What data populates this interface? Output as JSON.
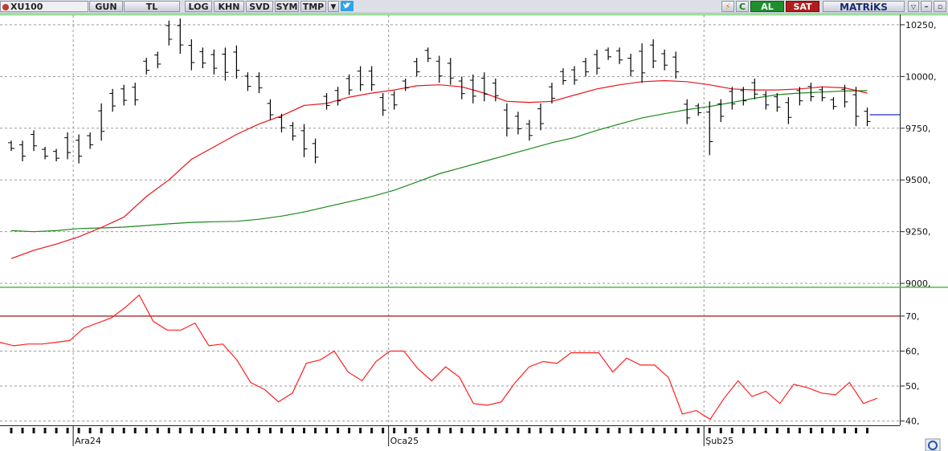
{
  "toolbar": {
    "symbol": "XU100",
    "buttons": [
      "GUN",
      "TL",
      "LOG",
      "KHN",
      "SVD",
      "SYM",
      "TMP"
    ],
    "lightning_icon": "lightning-icon",
    "refresh_label": "C",
    "buy_label": "AL",
    "sell_label": "SAT",
    "brand": "MATRiKS",
    "twitter_icon": "twitter-icon"
  },
  "colors": {
    "ma_short": "#e8141b",
    "ma_long": "#1a8a1a",
    "rsi_line": "#ff2020",
    "rsi_level_line": "#a01010",
    "current_price_marker": "#1c2ec8",
    "panel_separator": "#4cc04c"
  },
  "chart_data": [
    {
      "type": "ohlc",
      "y_tick_labels": [
        "10250,",
        "10000,",
        "9750,",
        "9500,",
        "9250,",
        "9000,"
      ],
      "y_ticks": [
        10250,
        10000,
        9750,
        9500,
        9250,
        9000
      ],
      "ylim": [
        8985,
        10300
      ],
      "grid": true,
      "bars": [
        [
          9690,
          9640
        ],
        [
          9690,
          9590
        ],
        [
          9740,
          9640
        ],
        [
          9660,
          9600
        ],
        [
          9650,
          9590
        ],
        [
          9730,
          9600
        ],
        [
          9720,
          9580
        ],
        [
          9730,
          9650
        ],
        [
          9870,
          9690
        ],
        [
          9940,
          9830
        ],
        [
          9960,
          9860
        ],
        [
          9970,
          9860
        ],
        [
          10090,
          10010
        ],
        [
          10120,
          10040
        ],
        [
          10270,
          10150
        ],
        [
          10280,
          10110
        ],
        [
          10180,
          10030
        ],
        [
          10140,
          10040
        ],
        [
          10130,
          10010
        ],
        [
          10140,
          9980
        ],
        [
          10150,
          9990
        ],
        [
          10020,
          9930
        ],
        [
          10020,
          9920
        ],
        [
          9890,
          9790
        ],
        [
          9820,
          9730
        ],
        [
          9780,
          9690
        ],
        [
          9770,
          9610
        ],
        [
          9700,
          9580
        ],
        [
          9920,
          9840
        ],
        [
          9950,
          9860
        ],
        [
          10010,
          9910
        ],
        [
          10050,
          9930
        ],
        [
          10050,
          9930
        ],
        [
          9920,
          9810
        ],
        [
          9930,
          9840
        ],
        [
          9990,
          9930
        ],
        [
          10090,
          10000
        ],
        [
          10140,
          10070
        ],
        [
          10100,
          9970
        ],
        [
          10090,
          9960
        ],
        [
          10000,
          9890
        ],
        [
          10010,
          9870
        ],
        [
          10020,
          9880
        ],
        [
          9990,
          9880
        ],
        [
          9870,
          9710
        ],
        [
          9830,
          9720
        ],
        [
          9790,
          9690
        ],
        [
          9870,
          9740
        ],
        [
          9970,
          9870
        ],
        [
          10040,
          9960
        ],
        [
          10050,
          9960
        ],
        [
          10090,
          10000
        ],
        [
          10130,
          10010
        ],
        [
          10140,
          10080
        ],
        [
          10140,
          10060
        ],
        [
          10110,
          10000
        ],
        [
          10160,
          9970
        ],
        [
          10180,
          10040
        ],
        [
          10130,
          10030
        ],
        [
          10120,
          9990
        ],
        [
          9890,
          9770
        ],
        [
          9870,
          9810
        ],
        [
          9880,
          9620
        ],
        [
          9890,
          9780
        ],
        [
          9950,
          9840
        ],
        [
          9950,
          9860
        ],
        [
          9990,
          9890
        ],
        [
          9930,
          9840
        ],
        [
          9920,
          9830
        ],
        [
          9900,
          9770
        ],
        [
          9950,
          9860
        ],
        [
          9970,
          9880
        ],
        [
          9950,
          9880
        ],
        [
          9900,
          9840
        ],
        [
          9960,
          9850
        ],
        [
          9950,
          9760
        ],
        [
          9850,
          9760
        ]
      ],
      "ma_short_values": [
        [
          0,
          9120
        ],
        [
          2,
          9160
        ],
        [
          4,
          9190
        ],
        [
          6,
          9225
        ],
        [
          8,
          9270
        ],
        [
          10,
          9320
        ],
        [
          12,
          9420
        ],
        [
          14,
          9500
        ],
        [
          16,
          9600
        ],
        [
          18,
          9660
        ],
        [
          20,
          9720
        ],
        [
          22,
          9770
        ],
        [
          24,
          9810
        ],
        [
          26,
          9860
        ],
        [
          28,
          9870
        ],
        [
          30,
          9900
        ],
        [
          32,
          9920
        ],
        [
          34,
          9935
        ],
        [
          36,
          9955
        ],
        [
          38,
          9960
        ],
        [
          40,
          9950
        ],
        [
          42,
          9920
        ],
        [
          44,
          9880
        ],
        [
          46,
          9875
        ],
        [
          48,
          9880
        ],
        [
          50,
          9910
        ],
        [
          52,
          9940
        ],
        [
          54,
          9960
        ],
        [
          56,
          9975
        ],
        [
          58,
          9980
        ],
        [
          60,
          9975
        ],
        [
          62,
          9960
        ],
        [
          64,
          9940
        ],
        [
          66,
          9935
        ],
        [
          68,
          9935
        ],
        [
          70,
          9940
        ],
        [
          72,
          9950
        ],
        [
          74,
          9945
        ],
        [
          76,
          9920
        ]
      ],
      "ma_long_values": [
        [
          0,
          9255
        ],
        [
          2,
          9250
        ],
        [
          4,
          9255
        ],
        [
          6,
          9265
        ],
        [
          8,
          9268
        ],
        [
          10,
          9272
        ],
        [
          12,
          9280
        ],
        [
          14,
          9288
        ],
        [
          16,
          9295
        ],
        [
          18,
          9298
        ],
        [
          20,
          9300
        ],
        [
          22,
          9310
        ],
        [
          24,
          9325
        ],
        [
          26,
          9345
        ],
        [
          28,
          9370
        ],
        [
          30,
          9395
        ],
        [
          32,
          9420
        ],
        [
          34,
          9450
        ],
        [
          36,
          9490
        ],
        [
          38,
          9530
        ],
        [
          40,
          9560
        ],
        [
          42,
          9590
        ],
        [
          44,
          9620
        ],
        [
          46,
          9650
        ],
        [
          48,
          9680
        ],
        [
          50,
          9705
        ],
        [
          52,
          9740
        ],
        [
          54,
          9770
        ],
        [
          56,
          9800
        ],
        [
          58,
          9820
        ],
        [
          60,
          9840
        ],
        [
          62,
          9855
        ],
        [
          64,
          9875
        ],
        [
          66,
          9895
        ],
        [
          68,
          9912
        ],
        [
          70,
          9920
        ],
        [
          72,
          9925
        ],
        [
          74,
          9930
        ],
        [
          76,
          9932
        ]
      ],
      "last_price": 9815
    },
    {
      "type": "line",
      "y_tick_labels": [
        "70,",
        "60,",
        "50,",
        "40,"
      ],
      "y_ticks": [
        70,
        60,
        50,
        40
      ],
      "ylim": [
        39,
        78
      ],
      "level_line": 70,
      "values": [
        62.5,
        61.5,
        62,
        62,
        62.5,
        63,
        66.5,
        68,
        69.5,
        72.5,
        76,
        68.5,
        66,
        66,
        68,
        61.5,
        62,
        57.5,
        51,
        49,
        45.5,
        48,
        56.5,
        57.5,
        60,
        54,
        51.5,
        57,
        60,
        60,
        55,
        51.5,
        55.5,
        52.5,
        45,
        44.5,
        45.5,
        51,
        55.5,
        57,
        56.5,
        59.5,
        59.5,
        59.5,
        54,
        58,
        56,
        56,
        52.5,
        42,
        43,
        40.5,
        46.5,
        51.5,
        47,
        48.5,
        45,
        50.5,
        49.5,
        48,
        47.5,
        51,
        45,
        46.5
      ]
    }
  ],
  "x_axis": {
    "date_labels": [
      "Ara24",
      "Oca25",
      "Şub25"
    ],
    "date_label_bar_index": [
      6,
      34,
      62
    ]
  }
}
